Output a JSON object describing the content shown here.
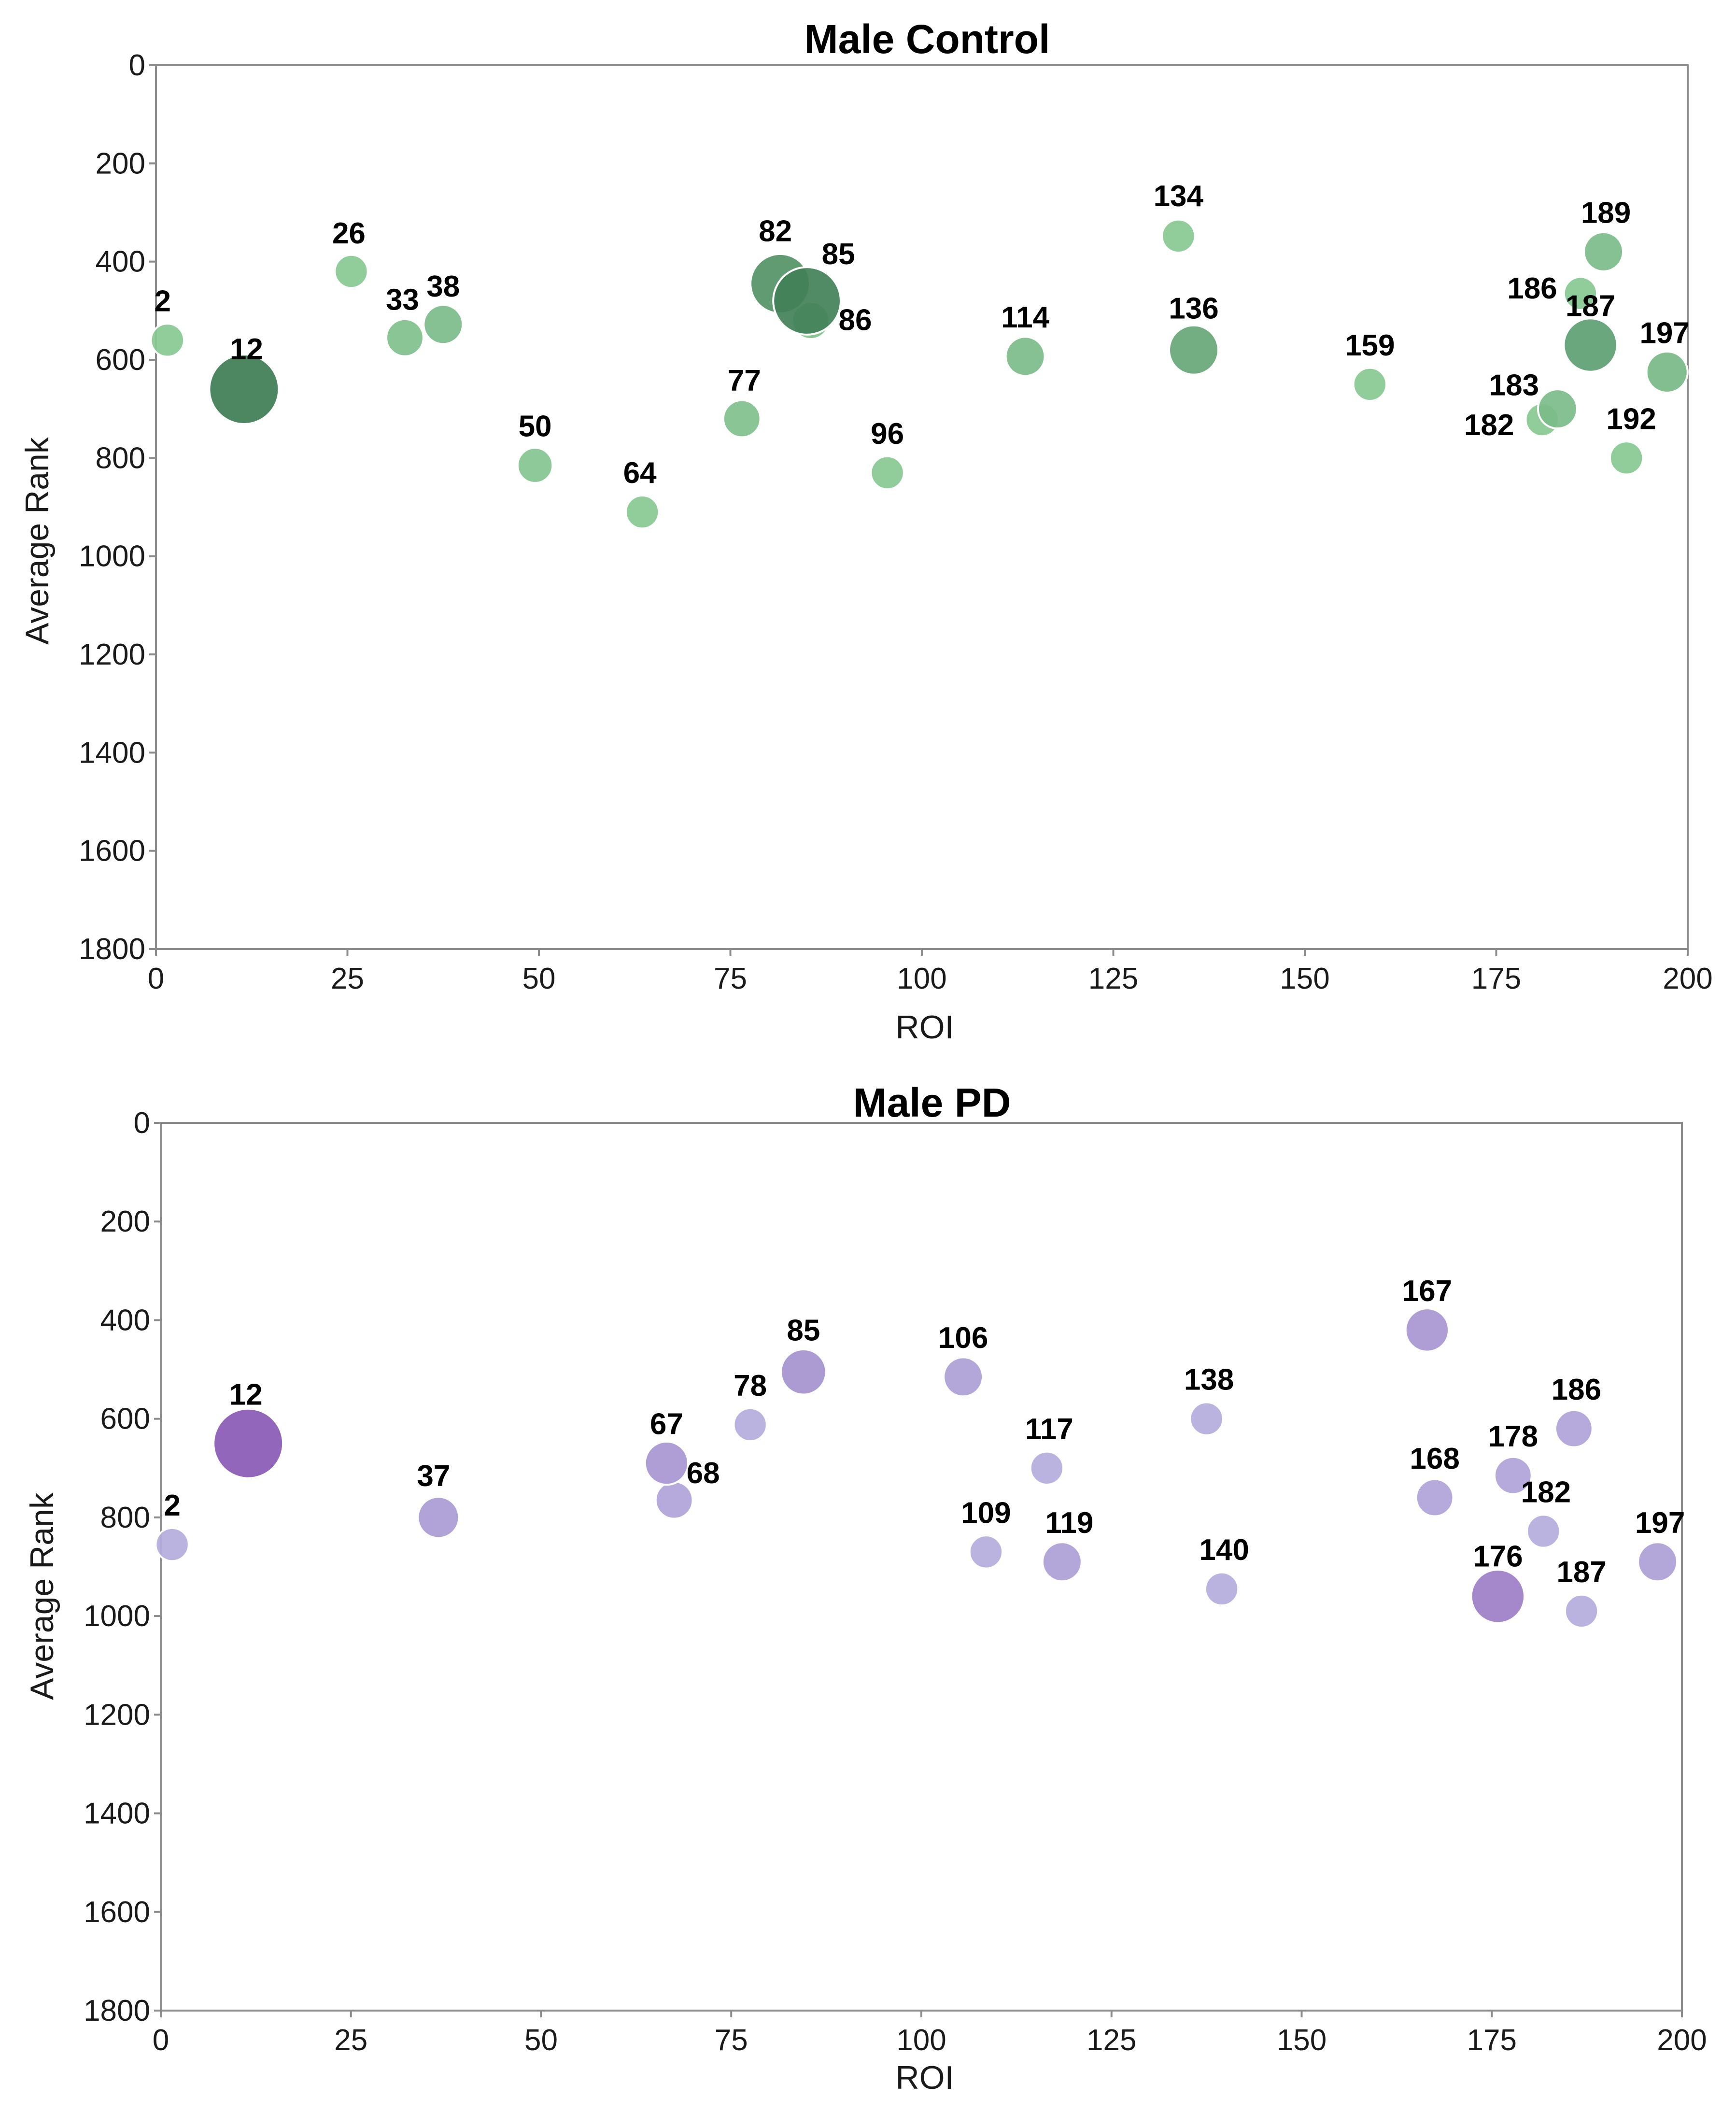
{
  "chart_data": [
    {
      "type": "scatter",
      "title": "Male Control",
      "xlabel": "ROI",
      "ylabel": "Average Rank",
      "xlim": [
        0,
        200
      ],
      "ylim": [
        1800,
        0
      ],
      "y_inverted": true,
      "xticks": [
        0,
        25,
        50,
        75,
        100,
        125,
        150,
        175,
        200
      ],
      "yticks": [
        0,
        200,
        400,
        600,
        800,
        1000,
        1200,
        1400,
        1600,
        1800
      ],
      "color_scale": {
        "light": "#8fd19a",
        "dark": "#3e7d55"
      },
      "points": [
        {
          "label": "2",
          "x": 1.5,
          "y": 560,
          "weight": 0.1
        },
        {
          "label": "12",
          "x": 11.5,
          "y": 660,
          "weight": 1.0
        },
        {
          "label": "26",
          "x": 25.5,
          "y": 420,
          "weight": 0.1
        },
        {
          "label": "33",
          "x": 32.5,
          "y": 555,
          "weight": 0.2
        },
        {
          "label": "38",
          "x": 37.5,
          "y": 528,
          "weight": 0.25
        },
        {
          "label": "50",
          "x": 49.5,
          "y": 815,
          "weight": 0.15
        },
        {
          "label": "64",
          "x": 63.5,
          "y": 910,
          "weight": 0.1
        },
        {
          "label": "77",
          "x": 76.5,
          "y": 720,
          "weight": 0.2
        },
        {
          "label": "82",
          "x": 81.5,
          "y": 445,
          "weight": 0.75
        },
        {
          "label": "85",
          "x": 85,
          "y": 480,
          "weight": 0.95
        },
        {
          "label": "86",
          "x": 85.5,
          "y": 520,
          "weight": 0.2
        },
        {
          "label": "96",
          "x": 95.5,
          "y": 830,
          "weight": 0.1
        },
        {
          "label": "114",
          "x": 113.5,
          "y": 593,
          "weight": 0.25
        },
        {
          "label": "134",
          "x": 133.5,
          "y": 348,
          "weight": 0.1
        },
        {
          "label": "136",
          "x": 135.5,
          "y": 580,
          "weight": 0.5
        },
        {
          "label": "159",
          "x": 158.5,
          "y": 650,
          "weight": 0.1
        },
        {
          "label": "182",
          "x": 181,
          "y": 722,
          "weight": 0.1
        },
        {
          "label": "183",
          "x": 183,
          "y": 700,
          "weight": 0.25
        },
        {
          "label": "186",
          "x": 186,
          "y": 465,
          "weight": 0.1
        },
        {
          "label": "187",
          "x": 187.3,
          "y": 570,
          "weight": 0.6
        },
        {
          "label": "189",
          "x": 189,
          "y": 380,
          "weight": 0.25
        },
        {
          "label": "192",
          "x": 192,
          "y": 800,
          "weight": 0.1
        },
        {
          "label": "197",
          "x": 197.3,
          "y": 625,
          "weight": 0.3
        }
      ]
    },
    {
      "type": "scatter",
      "title": "Male PD",
      "xlabel": "ROI",
      "ylabel": "Average Rank",
      "xlim": [
        0,
        200
      ],
      "ylim": [
        1800,
        0
      ],
      "y_inverted": true,
      "xticks": [
        0,
        25,
        50,
        75,
        100,
        125,
        150,
        175,
        200
      ],
      "yticks": [
        0,
        200,
        400,
        600,
        800,
        1000,
        1200,
        1400,
        1600,
        1800
      ],
      "color_scale": {
        "light": "#b9b6e1",
        "dark": "#8859b5"
      },
      "points": [
        {
          "label": "2",
          "x": 1.5,
          "y": 855,
          "weight": 0.1
        },
        {
          "label": "12",
          "x": 11.5,
          "y": 650,
          "weight": 1.0
        },
        {
          "label": "37",
          "x": 36.5,
          "y": 800,
          "weight": 0.3
        },
        {
          "label": "67",
          "x": 66.5,
          "y": 690,
          "weight": 0.35
        },
        {
          "label": "68",
          "x": 67.5,
          "y": 765,
          "weight": 0.2
        },
        {
          "label": "78",
          "x": 77.5,
          "y": 612,
          "weight": 0.1
        },
        {
          "label": "85",
          "x": 84.5,
          "y": 505,
          "weight": 0.4
        },
        {
          "label": "106",
          "x": 105.5,
          "y": 515,
          "weight": 0.25
        },
        {
          "label": "109",
          "x": 108.5,
          "y": 870,
          "weight": 0.1
        },
        {
          "label": "117",
          "x": 116.5,
          "y": 700,
          "weight": 0.1
        },
        {
          "label": "119",
          "x": 118.5,
          "y": 890,
          "weight": 0.25
        },
        {
          "label": "138",
          "x": 137.5,
          "y": 600,
          "weight": 0.1
        },
        {
          "label": "140",
          "x": 139.5,
          "y": 945,
          "weight": 0.1
        },
        {
          "label": "167",
          "x": 166.5,
          "y": 420,
          "weight": 0.35
        },
        {
          "label": "168",
          "x": 167.5,
          "y": 760,
          "weight": 0.2
        },
        {
          "label": "176",
          "x": 175.8,
          "y": 960,
          "weight": 0.6
        },
        {
          "label": "178",
          "x": 177.8,
          "y": 715,
          "weight": 0.2
        },
        {
          "label": "182",
          "x": 181.8,
          "y": 828,
          "weight": 0.1
        },
        {
          "label": "186",
          "x": 185.8,
          "y": 620,
          "weight": 0.2
        },
        {
          "label": "187",
          "x": 186.8,
          "y": 990,
          "weight": 0.1
        },
        {
          "label": "197",
          "x": 196.8,
          "y": 890,
          "weight": 0.25
        }
      ]
    }
  ]
}
